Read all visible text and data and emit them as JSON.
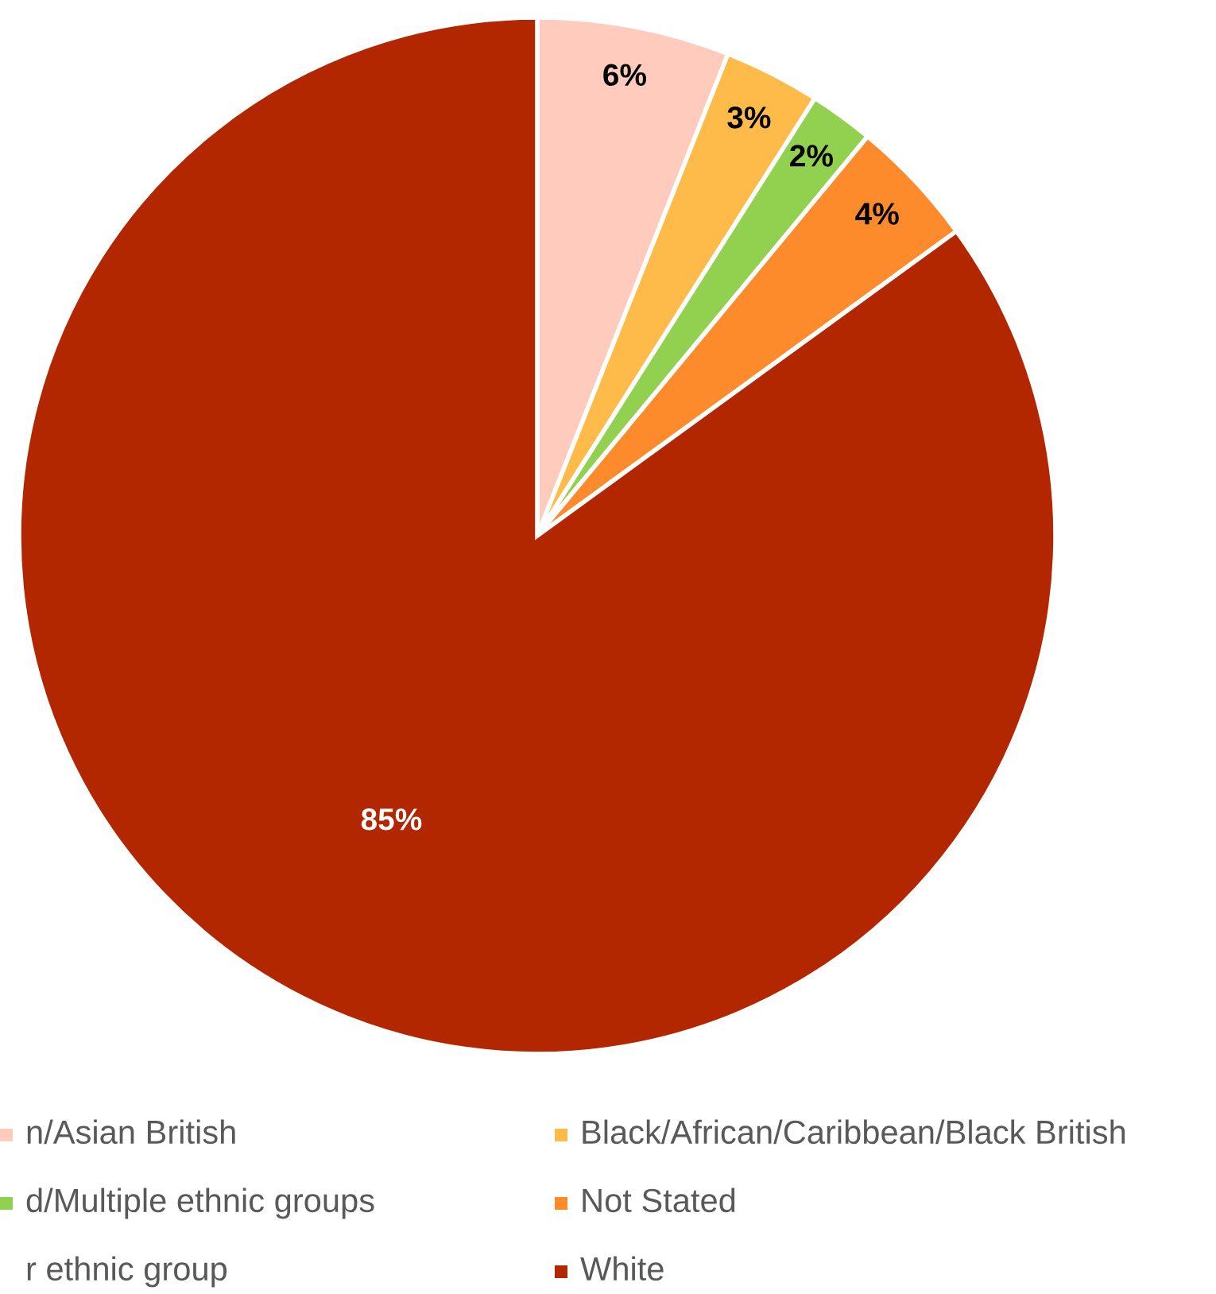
{
  "chart_data": {
    "type": "pie",
    "categories": [
      "n/Asian British",
      "Black/African/Caribbean/Black British",
      "d/Multiple ethnic groups",
      "Not Stated",
      "r ethnic group",
      "White"
    ],
    "values": [
      6,
      3,
      2,
      4,
      0,
      85
    ],
    "colors": [
      "#ffcbbd",
      "#ffbb4a",
      "#92d050",
      "#fd8a2b",
      null,
      "#b22600"
    ],
    "value_labels": [
      "6%",
      "3%",
      "2%",
      "4%",
      null,
      "85%"
    ],
    "legend": "bottom"
  }
}
